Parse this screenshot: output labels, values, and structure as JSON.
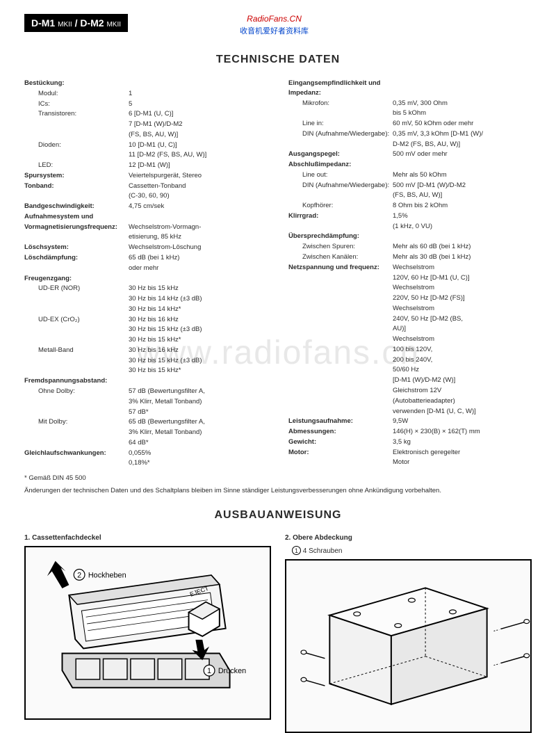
{
  "header": {
    "model": "D-M1 MKII / D-M2 MKII",
    "watermark1": "RadioFans.CN",
    "watermark2": "收音机爱好者资料库"
  },
  "bg_watermark": "www.radiofans.cn",
  "section1_title": "TECHNISCHE DATEN",
  "left_specs": [
    {
      "label": "Bestückung:",
      "bold": true,
      "value": ""
    },
    {
      "sublabel": "Modul:",
      "value": "1"
    },
    {
      "sublabel": "ICs:",
      "value": "5"
    },
    {
      "sublabel": "Transistoren:",
      "value": "6 [D-M1 (U, C)]"
    },
    {
      "sublabel": "",
      "value": "7 [D-M1 (W)/D-M2"
    },
    {
      "sublabel": "",
      "value": "(FS, BS, AU, W)]"
    },
    {
      "sublabel": "Dioden:",
      "value": "10 [D-M1 (U, C)]"
    },
    {
      "sublabel": "",
      "value": "11 [D-M2 (FS, BS, AU, W)]"
    },
    {
      "sublabel": "LED:",
      "value": "12 [D-M1 (W)]"
    },
    {
      "label": "Spursystem:",
      "bold": true,
      "value": "Veiertelspurgerät, Stereo"
    },
    {
      "label": "Tonband:",
      "bold": true,
      "value": "Cassetten-Tonband"
    },
    {
      "sublabel": "",
      "value": "(C-30, 60, 90)"
    },
    {
      "label": "Bandgeschwindigkeit:",
      "bold": true,
      "value": "4,75 cm/sek"
    },
    {
      "label": "Aufnahmesystem und",
      "bold": true,
      "value": ""
    },
    {
      "label": "Vormagnetisierungsfrequenz:",
      "bold": true,
      "value": "Wechselstrom-Vormagn-"
    },
    {
      "sublabel": "",
      "value": "etisierung, 85 kHz"
    },
    {
      "label": "Löschsystem:",
      "bold": true,
      "value": "Wechselstrom-Löschung"
    },
    {
      "label": "Löschdämpfung:",
      "bold": true,
      "value": "65 dB (bei 1 kHz)"
    },
    {
      "sublabel": "",
      "value": "oder mehr"
    },
    {
      "label": "Freugenzgang:",
      "bold": true,
      "value": ""
    },
    {
      "sublabel": "UD-ER (NOR)",
      "value": "30 Hz bis 15 kHz"
    },
    {
      "sublabel": "",
      "value": "30 Hz bis 14 kHz (±3 dB)"
    },
    {
      "sublabel": "",
      "value": "30 Hz bis 14 kHz*"
    },
    {
      "sublabel": "UD-EX (CrO₂)",
      "value": "30 Hz bis 16 kHz"
    },
    {
      "sublabel": "",
      "value": "30 Hz bis 15 kHz (±3 dB)"
    },
    {
      "sublabel": "",
      "value": "30 Hz bis 15 kHz*"
    },
    {
      "sublabel": "Metall-Band",
      "value": "30 Hz bis 16 kHz"
    },
    {
      "sublabel": "",
      "value": "30 Hz bis 15 kHz (±3 dB)"
    },
    {
      "sublabel": "",
      "value": "30 Hz bis 15 kHz*"
    },
    {
      "label": "Fremdspannungsabstand:",
      "bold": true,
      "value": ""
    },
    {
      "sublabel": "Ohne Dolby:",
      "value": "57 dB (Bewertungsfilter A,"
    },
    {
      "sublabel": "",
      "value": "3% Klirr, Metall Tonband)"
    },
    {
      "sublabel": "",
      "value": "57 dB*"
    },
    {
      "sublabel": "Mit Dolby:",
      "value": "65 dB (Bewertungsfilter A,"
    },
    {
      "sublabel": "",
      "value": "3% Klirr, Metall Tonband)"
    },
    {
      "sublabel": "",
      "value": "64 dB*"
    },
    {
      "label": "Gleichlaufschwankungen:",
      "bold": true,
      "value": "0,055%"
    },
    {
      "sublabel": "",
      "value": "0,18%*"
    }
  ],
  "right_specs": [
    {
      "label": "Eingangsempfindlichkeit und Impedanz:",
      "bold": true,
      "value": ""
    },
    {
      "sublabel": "Mikrofon:",
      "value": "0,35 mV, 300 Ohm"
    },
    {
      "sublabel": "",
      "value": "bis 5 kOhm"
    },
    {
      "sublabel": "Line in:",
      "value": "60 mV, 50 kOhm oder mehr"
    },
    {
      "sublabel": "DIN (Aufnahme/Wiedergabe):",
      "value": "0,35 mV, 3,3 kOhm [D-M1 (W)/"
    },
    {
      "sublabel": "",
      "value": "D-M2 (FS, BS, AU, W)]"
    },
    {
      "label": "Ausgangspegel:",
      "bold": true,
      "value": "500 mV oder mehr"
    },
    {
      "label": "Abschlußimpedanz:",
      "bold": true,
      "value": ""
    },
    {
      "sublabel": "Line out:",
      "value": "Mehr als 50 kOhm"
    },
    {
      "sublabel": "DIN (Aufnahme/Wiedergabe):",
      "value": "500 mV [D-M1 (W)/D-M2"
    },
    {
      "sublabel": "",
      "value": "(FS, BS, AU, W)]"
    },
    {
      "sublabel": "Kopfhörer:",
      "value": "8 Ohm bis 2 kOhm"
    },
    {
      "label": "Klirrgrad:",
      "bold": true,
      "value": "1,5%"
    },
    {
      "sublabel": "",
      "value": "(1 kHz, 0 VU)"
    },
    {
      "label": "Übersprechdämpfung:",
      "bold": true,
      "value": ""
    },
    {
      "sublabel": "Zwischen Spuren:",
      "value": "Mehr als 60 dB (bei 1 kHz)"
    },
    {
      "sublabel": "Zwischen Kanälen:",
      "value": "Mehr als 30 dB (bei 1 kHz)"
    },
    {
      "label": "Netzspannung und frequenz:",
      "bold": true,
      "value": "Wechselstrom"
    },
    {
      "sublabel": "",
      "value": "  120V, 60 Hz [D-M1 (U, C)]"
    },
    {
      "sublabel": "",
      "value": "Wechselstrom"
    },
    {
      "sublabel": "",
      "value": "  220V, 50 Hz [D-M2 (FS)]"
    },
    {
      "sublabel": "",
      "value": "Wechselstrom"
    },
    {
      "sublabel": "",
      "value": "  240V, 50 Hz [D-M2 (BS,"
    },
    {
      "sublabel": "",
      "value": "  AU)]"
    },
    {
      "sublabel": "",
      "value": "Wechselstrom"
    },
    {
      "sublabel": "",
      "value": "  100 bis 120V,"
    },
    {
      "sublabel": "",
      "value": "  200 bis 240V,"
    },
    {
      "sublabel": "",
      "value": "  50/60 Hz"
    },
    {
      "sublabel": "",
      "value": "  [D-M1 (W)/D-M2 (W)]"
    },
    {
      "sublabel": "",
      "value": "Gleichstrom 12V"
    },
    {
      "sublabel": "",
      "value": "(Autobatterieadapter)"
    },
    {
      "sublabel": "",
      "value": "verwenden [D-M1 (U, C, W)]"
    },
    {
      "label": "Leistungsaufnahme:",
      "bold": true,
      "value": "9,5W"
    },
    {
      "label": "Abmessungen:",
      "bold": true,
      "value": "146(H) × 230(B) × 162(T) mm"
    },
    {
      "label": "Gewicht:",
      "bold": true,
      "value": "3,5 kg"
    },
    {
      "label": "Motor:",
      "bold": true,
      "value": "Elektronisch geregelter"
    },
    {
      "sublabel": "",
      "value": "Motor"
    }
  ],
  "footnote": "* Gemäß DIN 45 500",
  "change_note": "Änderungen der technischen Daten und des Schaltplans bleiben im Sinne ständiger Leistungsverbesserungen ohne Ankündigung vorbehalten.",
  "section2_title": "AUSBAUANWEISUNG",
  "diagram1": {
    "title": "1. Cassettenfachdeckel",
    "label_hockheben": "Hockheben",
    "label_eject": "EJECT",
    "label_drucken": "Drücken"
  },
  "diagram2": {
    "title": "2. Obere Abdeckung",
    "subtitle": "4 Schrauben"
  }
}
